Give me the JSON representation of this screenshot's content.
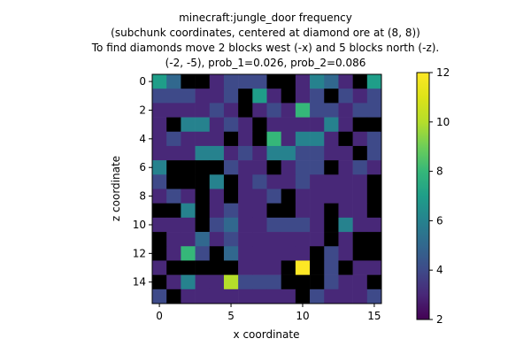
{
  "chart_data": {
    "type": "heatmap",
    "title_lines": [
      "minecraft:jungle_door frequency",
      "(subchunk coordinates, centered at diamond ore at (8, 8))",
      "To find diamonds move 2 blocks west (-x) and 5 blocks north (-z).",
      "(-2, -5), prob_1=0.026, prob_2=0.086"
    ],
    "xlabel": "x coordinate",
    "ylabel": "z coordinate",
    "x_ticks": [
      0,
      5,
      10,
      15
    ],
    "y_ticks": [
      0,
      2,
      4,
      6,
      8,
      10,
      12,
      14
    ],
    "colorbar": {
      "min": 2,
      "max": 12,
      "ticks": [
        2,
        4,
        6,
        8,
        10,
        12
      ],
      "colormap": "viridis"
    },
    "grid": false,
    "values": [
      [
        7,
        5,
        2,
        2,
        3,
        4,
        4,
        4,
        2,
        2,
        3,
        6,
        5,
        3,
        2,
        7
      ],
      [
        4,
        4,
        4,
        3,
        3,
        4,
        2,
        7,
        3,
        2,
        3,
        4,
        2,
        4,
        3,
        4
      ],
      [
        3,
        3,
        3,
        3,
        4,
        3,
        2,
        3,
        4,
        3,
        8,
        4,
        4,
        3,
        4,
        4
      ],
      [
        3,
        2,
        6,
        6,
        3,
        4,
        3,
        2,
        3,
        3,
        3,
        3,
        6,
        3,
        2,
        2
      ],
      [
        3,
        4,
        3,
        3,
        3,
        2,
        3,
        2,
        8,
        3,
        6,
        6,
        3,
        2,
        3,
        4
      ],
      [
        3,
        3,
        3,
        6,
        6,
        3,
        4,
        3,
        6,
        6,
        4,
        4,
        3,
        3,
        2,
        4
      ],
      [
        6,
        2,
        2,
        2,
        2,
        4,
        3,
        3,
        2,
        3,
        4,
        4,
        2,
        3,
        4,
        3
      ],
      [
        4,
        2,
        2,
        2,
        6,
        2,
        3,
        4,
        3,
        3,
        4,
        3,
        3,
        3,
        3,
        2
      ],
      [
        3,
        4,
        3,
        2,
        3,
        2,
        3,
        3,
        4,
        2,
        3,
        3,
        3,
        3,
        3,
        2
      ],
      [
        2,
        2,
        6,
        2,
        3,
        4,
        3,
        3,
        2,
        2,
        3,
        3,
        2,
        3,
        3,
        2
      ],
      [
        3,
        3,
        3,
        2,
        4,
        5,
        3,
        3,
        4,
        4,
        4,
        3,
        2,
        6,
        3,
        3
      ],
      [
        2,
        3,
        3,
        5,
        3,
        4,
        3,
        3,
        3,
        3,
        3,
        3,
        2,
        3,
        2,
        2
      ],
      [
        2,
        3,
        8,
        4,
        2,
        5,
        3,
        3,
        3,
        3,
        3,
        2,
        4,
        3,
        2,
        2
      ],
      [
        3,
        2,
        2,
        2,
        2,
        2,
        3,
        3,
        3,
        2,
        12,
        2,
        4,
        2,
        3,
        3
      ],
      [
        2,
        3,
        6,
        3,
        3,
        10,
        4,
        4,
        4,
        2,
        2,
        2,
        4,
        3,
        3,
        2
      ],
      [
        4,
        2,
        3,
        3,
        3,
        3,
        3,
        3,
        3,
        3,
        2,
        4,
        3,
        3,
        3,
        4
      ]
    ]
  }
}
